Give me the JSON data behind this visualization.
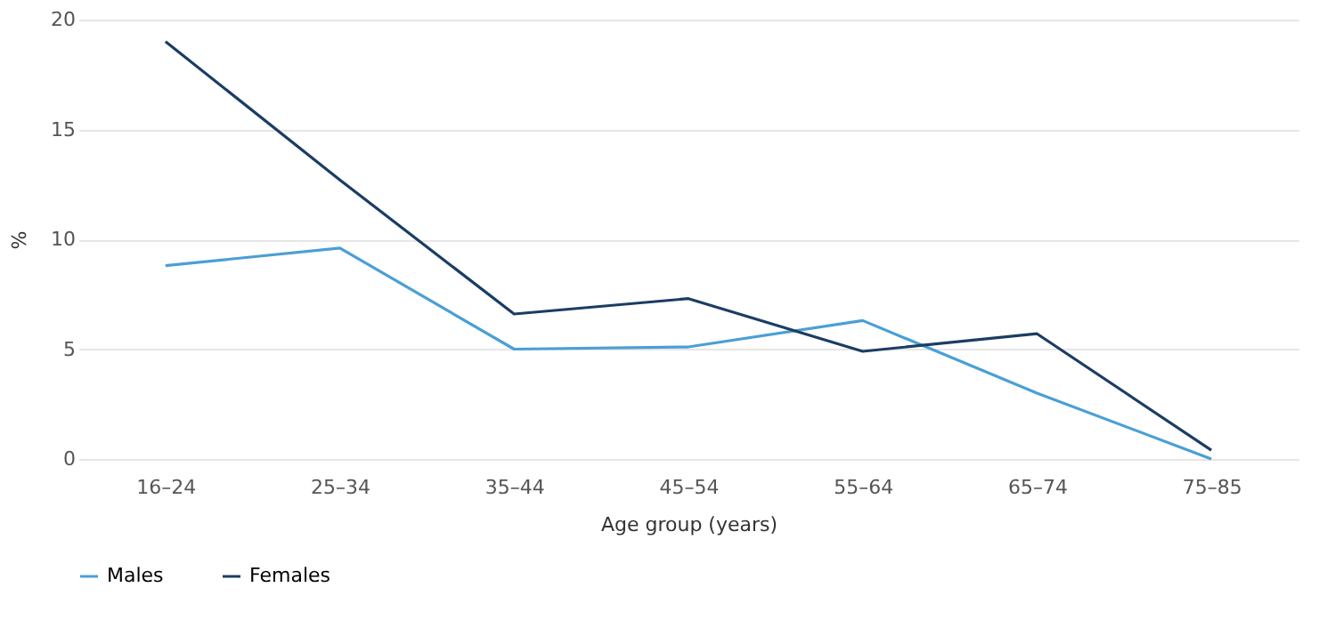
{
  "chart_data": {
    "type": "line",
    "xlabel": "Age group (years)",
    "ylabel": "%",
    "categories": [
      "16–24",
      "25–34",
      "35–44",
      "45–54",
      "55–64",
      "65–74",
      "75–85"
    ],
    "series": [
      {
        "name": "Males",
        "color": "#4a9fd6",
        "values": [
          8.8,
          9.6,
          5.0,
          5.1,
          6.3,
          3.0,
          0.0
        ]
      },
      {
        "name": "Females",
        "color": "#1b3d63",
        "values": [
          19.0,
          12.7,
          6.6,
          7.3,
          4.9,
          5.7,
          0.4
        ]
      }
    ],
    "ylim": [
      0,
      20
    ],
    "yticks": [
      0,
      5,
      10,
      15,
      20
    ],
    "grid": "y",
    "legend": "bottom",
    "marker": "none",
    "line_style": "solid"
  }
}
